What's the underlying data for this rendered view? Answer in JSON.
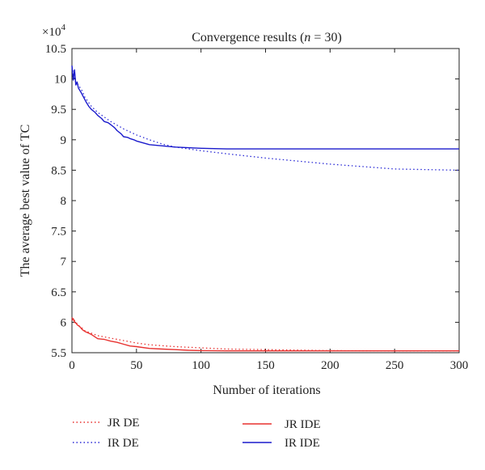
{
  "chart_data": {
    "type": "line",
    "title_prefix": "Convergence results (",
    "title_var": "n",
    "title_suffix": " = 30)",
    "xlabel": "Number of iterations",
    "ylabel": "The average best value of TC",
    "y_multiplier_base": "×10",
    "y_multiplier_exp": "4",
    "xlim": [
      0,
      300
    ],
    "ylim": [
      5.5,
      10.5
    ],
    "xticks": [
      0,
      50,
      100,
      150,
      200,
      250,
      300
    ],
    "yticks": [
      5.5,
      6,
      6.5,
      7,
      7.5,
      8,
      8.5,
      9,
      9.5,
      10,
      10.5
    ],
    "grid": false,
    "legend_position": "bottom",
    "series": [
      {
        "name": "JR DE",
        "color": "#e8312f",
        "dash": "dotted",
        "x": [
          0,
          1,
          2,
          3,
          5,
          8,
          10,
          15,
          20,
          30,
          40,
          50,
          60,
          80,
          100,
          120,
          150,
          200,
          250,
          300
        ],
        "y": [
          6.08,
          6.04,
          6.03,
          6.0,
          5.95,
          5.9,
          5.86,
          5.82,
          5.78,
          5.74,
          5.7,
          5.66,
          5.63,
          5.6,
          5.58,
          5.56,
          5.55,
          5.535,
          5.53,
          5.53
        ]
      },
      {
        "name": "IR DE",
        "color": "#2b2bd6",
        "dash": "dotted",
        "x": [
          0,
          1,
          2,
          3,
          5,
          8,
          10,
          15,
          20,
          30,
          40,
          50,
          60,
          70,
          80,
          100,
          120,
          150,
          200,
          250,
          300
        ],
        "y": [
          10.2,
          10.1,
          10.0,
          9.95,
          9.9,
          9.8,
          9.7,
          9.55,
          9.45,
          9.3,
          9.18,
          9.08,
          9.0,
          8.93,
          8.88,
          8.82,
          8.77,
          8.7,
          8.6,
          8.52,
          8.5
        ]
      },
      {
        "name": "JR IDE",
        "color": "#e8312f",
        "dash": "solid",
        "x": [
          0,
          1,
          2,
          3,
          4,
          6,
          8,
          10,
          15,
          20,
          25,
          30,
          35,
          40,
          45,
          50,
          60,
          70,
          80,
          90,
          100,
          120,
          150,
          200,
          250,
          300
        ],
        "y": [
          6.03,
          6.06,
          6.0,
          5.99,
          5.96,
          5.93,
          5.88,
          5.85,
          5.8,
          5.73,
          5.72,
          5.69,
          5.67,
          5.64,
          5.61,
          5.6,
          5.57,
          5.56,
          5.55,
          5.54,
          5.535,
          5.53,
          5.53,
          5.53,
          5.53,
          5.53
        ]
      },
      {
        "name": "IR IDE",
        "color": "#1a1acc",
        "dash": "solid",
        "x": [
          0,
          1,
          2,
          3,
          4,
          5,
          7,
          9,
          11,
          13,
          15,
          18,
          20,
          23,
          25,
          28,
          30,
          33,
          35,
          38,
          40,
          43,
          45,
          48,
          50,
          55,
          60,
          70,
          80,
          90,
          100,
          110,
          120,
          150,
          200,
          250,
          300
        ],
        "y": [
          10.22,
          9.98,
          10.15,
          9.9,
          9.95,
          9.85,
          9.78,
          9.7,
          9.62,
          9.55,
          9.5,
          9.45,
          9.4,
          9.35,
          9.3,
          9.28,
          9.25,
          9.2,
          9.15,
          9.1,
          9.05,
          9.04,
          9.02,
          9.0,
          8.98,
          8.95,
          8.92,
          8.9,
          8.88,
          8.87,
          8.86,
          8.855,
          8.85,
          8.85,
          8.85,
          8.85,
          8.85
        ]
      }
    ]
  },
  "legend": {
    "items": [
      {
        "name": "JR DE",
        "color": "#e8312f",
        "dash": "dotted"
      },
      {
        "name": "IR DE",
        "color": "#2b2bd6",
        "dash": "dotted"
      },
      {
        "name": "JR IDE",
        "color": "#e8312f",
        "dash": "solid"
      },
      {
        "name": "IR IDE",
        "color": "#1a1acc",
        "dash": "solid"
      }
    ]
  }
}
